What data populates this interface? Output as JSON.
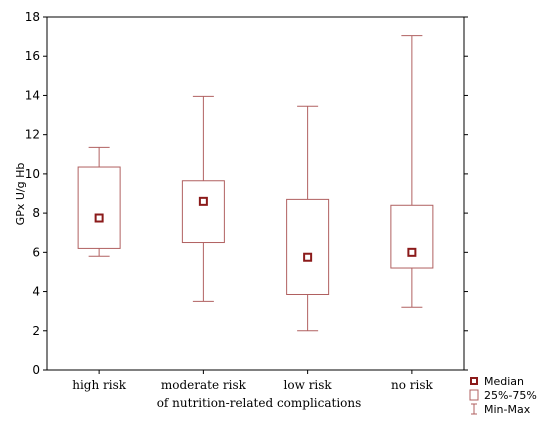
{
  "chart_data": {
    "type": "box",
    "title": "",
    "ylabel": "GPx U/g Hb",
    "xlabel": "of nutrition-related complications",
    "ylim": [
      0,
      18
    ],
    "yticks": [
      0,
      2,
      4,
      6,
      8,
      10,
      12,
      14,
      16,
      18
    ],
    "grid": false,
    "legend_position": "bottom-right",
    "colors": {
      "box": "#b06060",
      "median_marker": "#8b1a1a"
    },
    "categories": [
      "high risk",
      "moderate risk",
      "low risk",
      "no risk"
    ],
    "series": [
      {
        "category": "high risk",
        "min": 5.8,
        "q1": 6.2,
        "median": 7.75,
        "q3": 10.35,
        "max": 11.35
      },
      {
        "category": "moderate risk",
        "min": 3.5,
        "q1": 6.5,
        "median": 8.6,
        "q3": 9.65,
        "max": 13.95
      },
      {
        "category": "low risk",
        "min": 2.0,
        "q1": 3.85,
        "median": 5.75,
        "q3": 8.7,
        "max": 13.45
      },
      {
        "category": "no risk",
        "min": 3.2,
        "q1": 5.2,
        "median": 6.0,
        "q3": 8.4,
        "max": 17.05
      }
    ],
    "legend": [
      {
        "label": "Median",
        "symbol": "median"
      },
      {
        "label": "25%-75%",
        "symbol": "box"
      },
      {
        "label": "Min-Max",
        "symbol": "whisker"
      }
    ]
  }
}
